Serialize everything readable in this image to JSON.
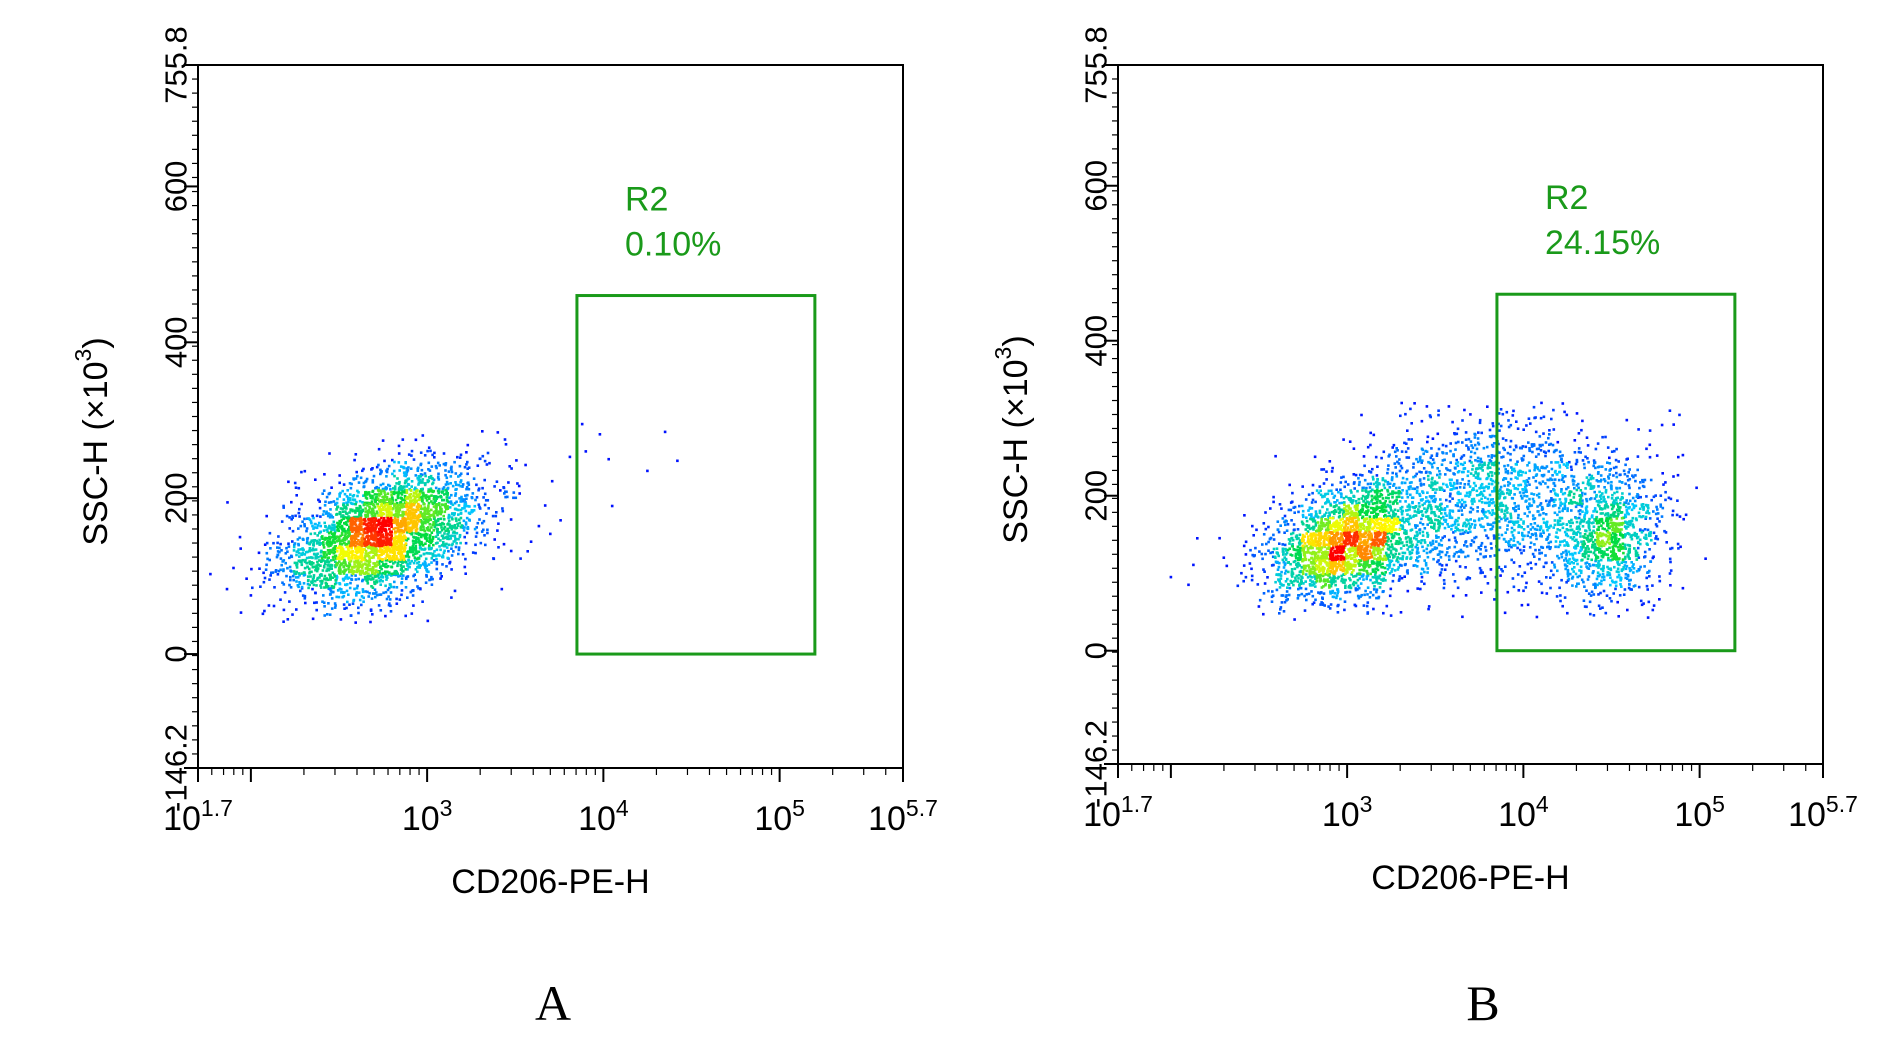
{
  "chart_data": [
    {
      "type": "scatter",
      "panel_label": "A",
      "xlabel": "CD206-PE-H",
      "ylabel_main": "SSC-H (×10",
      "ylabel_exp": "3",
      "ylabel_close": ")",
      "x_scale": "log",
      "xlim_exp": [
        1.7,
        5.7
      ],
      "ylim": [
        -146.2,
        755.8
      ],
      "x_ticks": [
        {
          "exp": 1.7,
          "base": "10",
          "sup": "1.7"
        },
        {
          "exp": 3,
          "base": "10",
          "sup": "3"
        },
        {
          "exp": 4,
          "base": "10",
          "sup": "4"
        },
        {
          "exp": 5,
          "base": "10",
          "sup": "5"
        },
        {
          "exp": 5.7,
          "base": "10",
          "sup": "5.7"
        }
      ],
      "y_ticks": [
        {
          "value": -146.2,
          "label": "-146.2"
        },
        {
          "value": 0,
          "label": "0"
        },
        {
          "value": 200,
          "label": "200"
        },
        {
          "value": 400,
          "label": "400"
        },
        {
          "value": 600,
          "label": "600"
        },
        {
          "value": 755.8,
          "label": "755.8"
        }
      ],
      "gate": {
        "name": "R2",
        "percent": "0.10%",
        "x_exp": [
          3.85,
          5.2
        ],
        "y": [
          0,
          460
        ]
      },
      "populations": [
        {
          "center_exp": 2.75,
          "center_y": 155,
          "sd_exp": 0.28,
          "sd_y": 42,
          "count": 3200,
          "corr": 0.45
        }
      ],
      "outliers": [
        [
          3.88,
          295
        ],
        [
          3.98,
          282
        ],
        [
          4.03,
          250
        ],
        [
          4.25,
          235
        ],
        [
          4.35,
          285
        ],
        [
          4.42,
          248
        ],
        [
          4.05,
          190
        ],
        [
          3.9,
          260
        ]
      ],
      "grid": false,
      "legend": "none"
    },
    {
      "type": "scatter",
      "panel_label": "B",
      "xlabel": "CD206-PE-H",
      "ylabel_main": "SSC-H (×10",
      "ylabel_exp": "3",
      "ylabel_close": ")",
      "x_scale": "log",
      "xlim_exp": [
        1.7,
        5.7
      ],
      "ylim": [
        -146.2,
        755.8
      ],
      "x_ticks": [
        {
          "exp": 1.7,
          "base": "10",
          "sup": "1.7"
        },
        {
          "exp": 3,
          "base": "10",
          "sup": "3"
        },
        {
          "exp": 4,
          "base": "10",
          "sup": "4"
        },
        {
          "exp": 5,
          "base": "10",
          "sup": "5"
        },
        {
          "exp": 5.7,
          "base": "10",
          "sup": "5.7"
        }
      ],
      "y_ticks": [
        {
          "value": -146.2,
          "label": "-146.2"
        },
        {
          "value": 0,
          "label": "0"
        },
        {
          "value": 200,
          "label": "200"
        },
        {
          "value": 400,
          "label": "400"
        },
        {
          "value": 600,
          "label": "600"
        },
        {
          "value": 755.8,
          "label": "755.8"
        }
      ],
      "gate": {
        "name": "R2",
        "percent": "24.15%",
        "x_exp": [
          3.85,
          5.2
        ],
        "y": [
          0,
          460
        ]
      },
      "populations": [
        {
          "center_exp": 3.0,
          "center_y": 140,
          "sd_exp": 0.22,
          "sd_y": 38,
          "count": 2300,
          "corr": 0.3
        },
        {
          "center_exp": 3.8,
          "center_y": 195,
          "sd_exp": 0.35,
          "sd_y": 55,
          "count": 1500,
          "corr": 0.1
        },
        {
          "center_exp": 4.48,
          "center_y": 150,
          "sd_exp": 0.16,
          "sd_y": 45,
          "count": 1000,
          "corr": 0.1
        }
      ],
      "outliers": [
        [
          2.0,
          95
        ],
        [
          2.1,
          85
        ],
        [
          2.15,
          145
        ],
        [
          2.3,
          120
        ],
        [
          2.4,
          100
        ]
      ],
      "grid": false,
      "legend": "none"
    }
  ],
  "colors": {
    "gate": "#1a9a1a",
    "axis": "#000000",
    "density_low": "#0000ff",
    "density_mid": "#00e0ff",
    "density_high": "#ffff00",
    "density_peak": "#ff0000"
  }
}
